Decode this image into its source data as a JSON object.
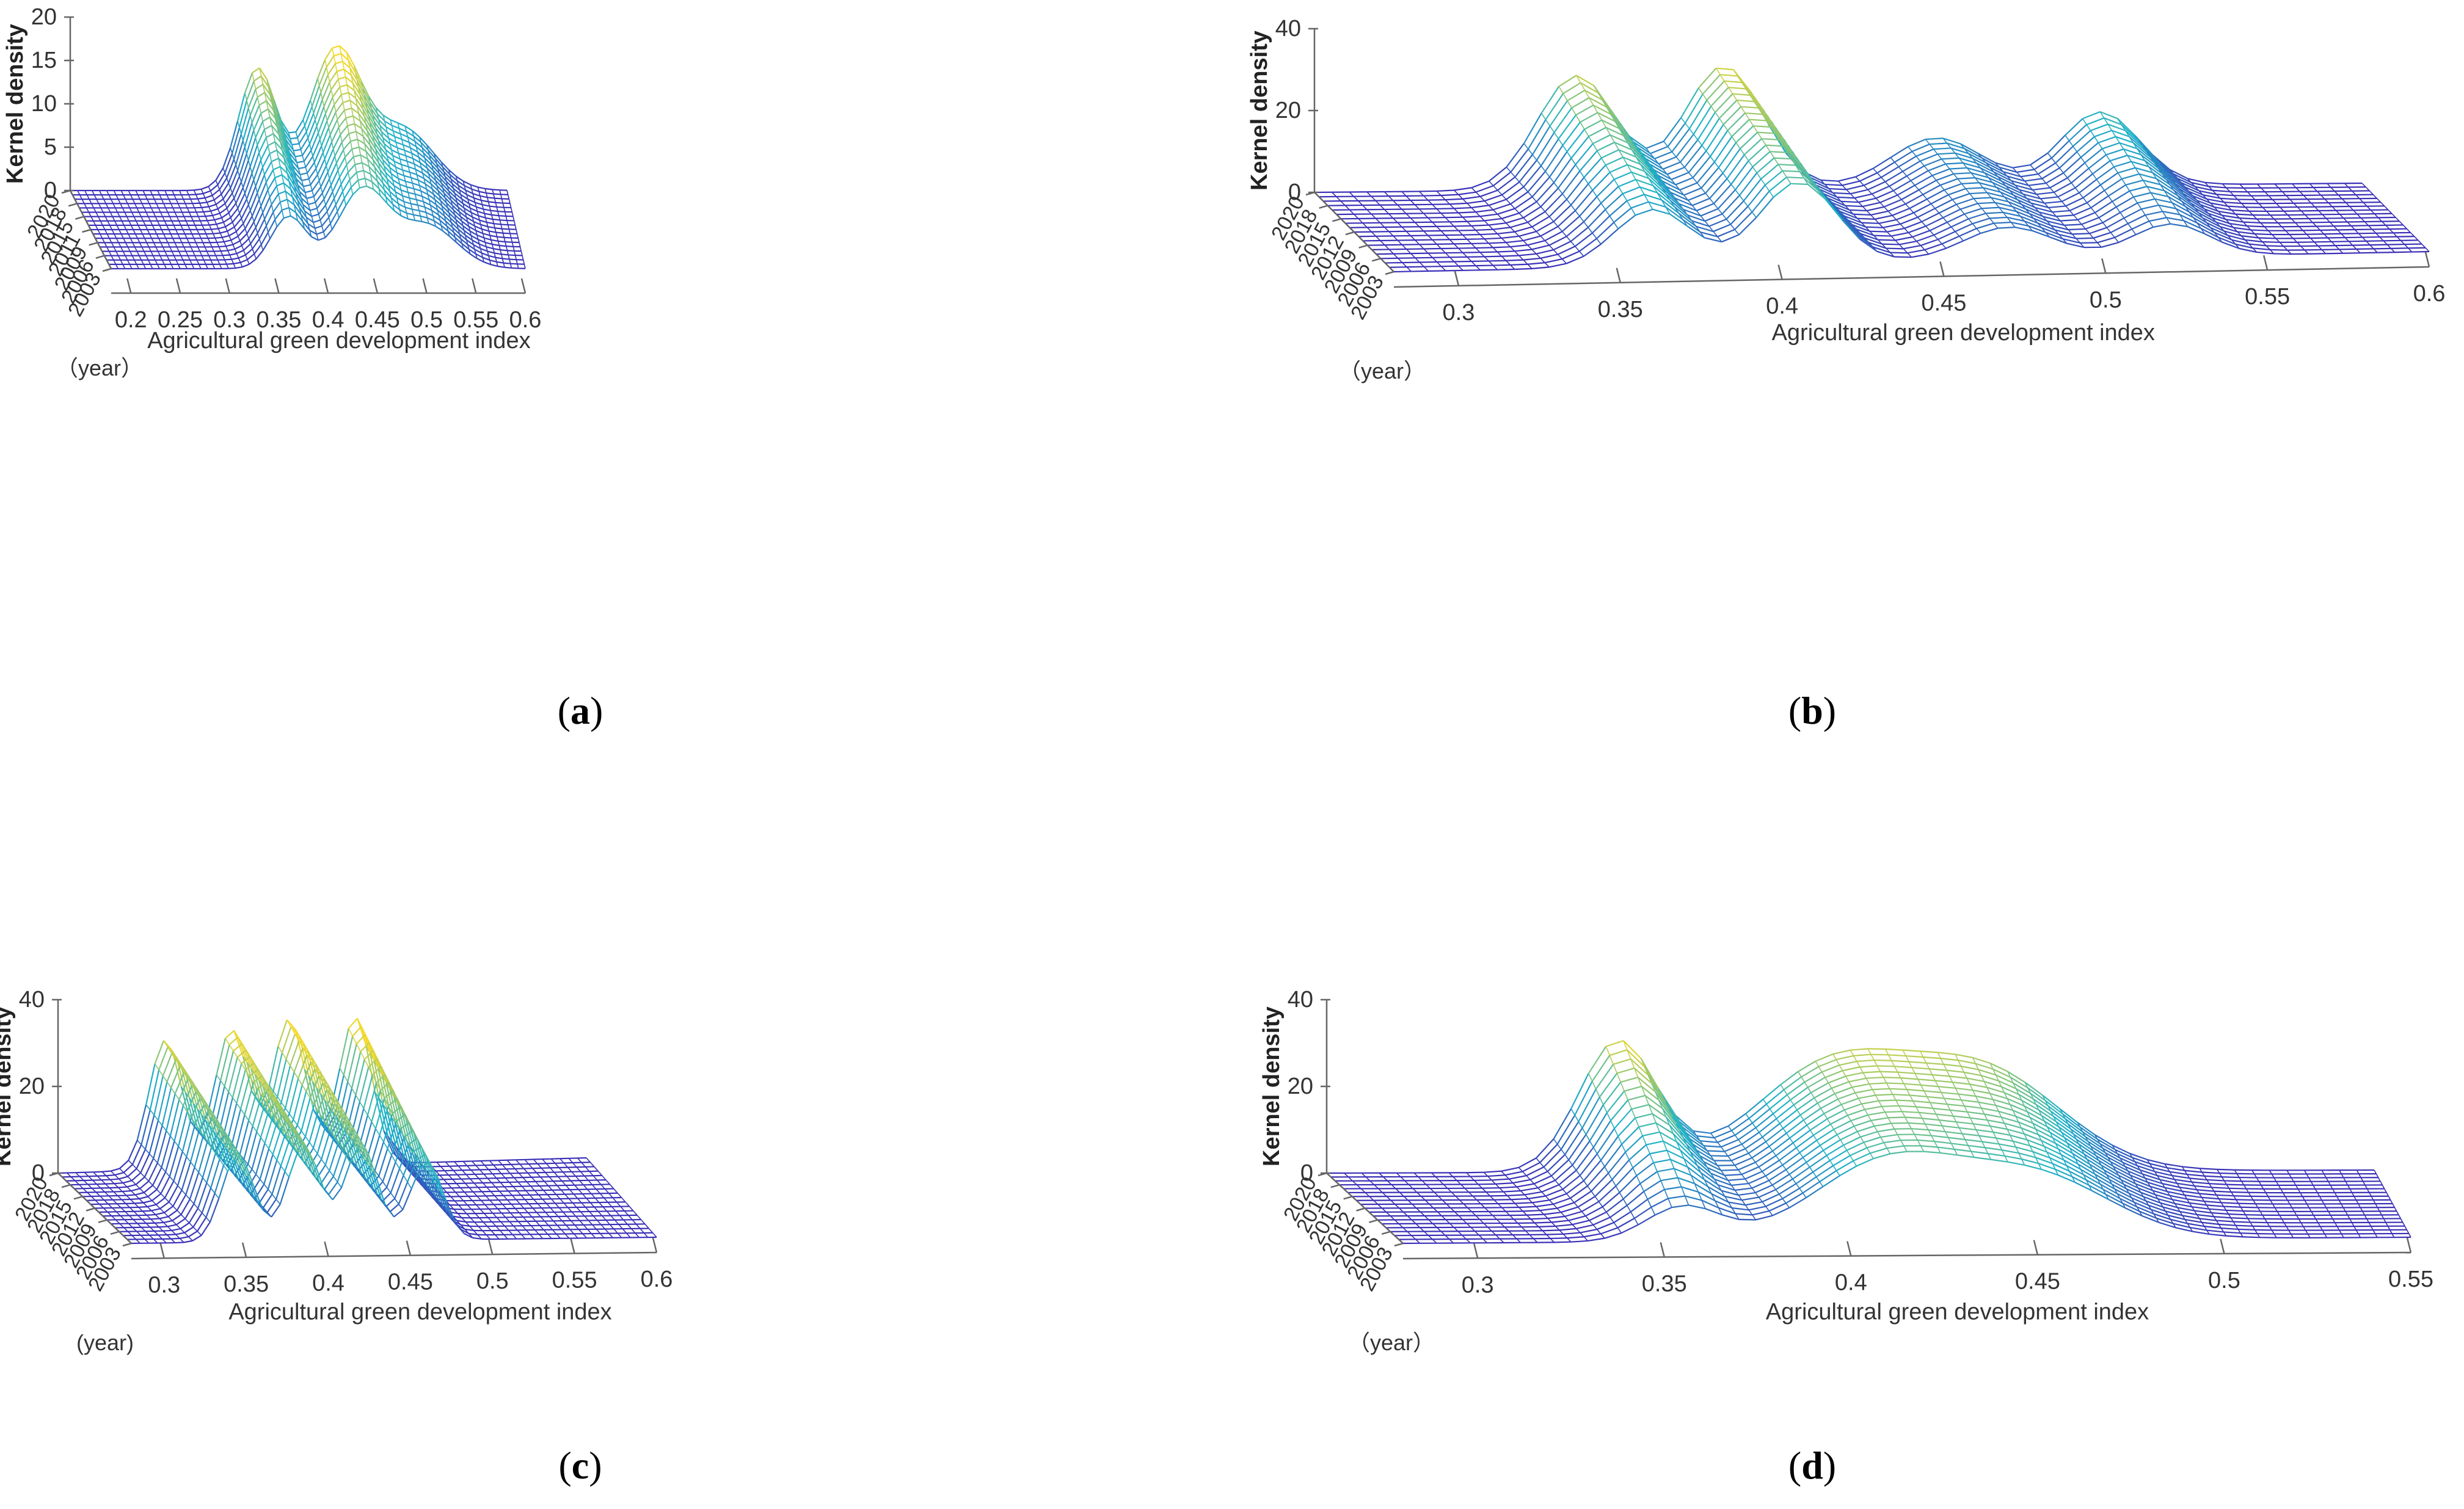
{
  "chart_data": [
    {
      "type": "surface-3d",
      "panel": "a",
      "caption_letter": "a",
      "xlabel": "Agricultural green development index",
      "ylabel": "Kernel density",
      "year_label": "（year）",
      "x_ticks": [
        "0.2",
        "0.25",
        "0.3",
        "0.35",
        "0.4",
        "0.45",
        "0.5",
        "0.55",
        "0.6"
      ],
      "xlim": [
        0.18,
        0.6
      ],
      "z_ticks": [
        "0",
        "5",
        "10",
        "15",
        "20"
      ],
      "zlim": [
        0,
        20
      ],
      "year_ticks": [
        "2003",
        "2006",
        "2009",
        "2011",
        "2015",
        "2018",
        "2020"
      ],
      "years": [
        2003,
        2020
      ],
      "peaks": [
        {
          "x": 0.36,
          "height_start": 6,
          "height_end": 14,
          "width": 0.018
        },
        {
          "x": 0.435,
          "height_start": 9,
          "height_end": 16,
          "width": 0.025
        },
        {
          "x": 0.5,
          "height_start": 5,
          "height_end": 7,
          "width": 0.03
        }
      ]
    },
    {
      "type": "surface-3d",
      "panel": "b",
      "caption_letter": "b",
      "xlabel": "Agricultural green development index",
      "ylabel": "Kernel density",
      "year_label": "（year）",
      "x_ticks": [
        "0.3",
        "0.35",
        "0.4",
        "0.45",
        "0.5",
        "0.55",
        "0.6"
      ],
      "xlim": [
        0.28,
        0.6
      ],
      "z_ticks": [
        "0",
        "20",
        "40"
      ],
      "zlim": [
        0,
        40
      ],
      "year_ticks": [
        "2003",
        "2006",
        "2009",
        "2012",
        "2015",
        "2018",
        "2020"
      ],
      "years": [
        2003,
        2020
      ],
      "peaks": [
        {
          "x": 0.36,
          "height_start": 14,
          "height_end": 28,
          "width": 0.012
        },
        {
          "x": 0.405,
          "height_start": 20,
          "height_end": 30,
          "width": 0.012
        },
        {
          "x": 0.47,
          "height_start": 8,
          "height_end": 12,
          "width": 0.014
        },
        {
          "x": 0.52,
          "height_start": 8,
          "height_end": 18,
          "width": 0.012
        }
      ]
    },
    {
      "type": "surface-3d",
      "panel": "c",
      "caption_letter": "c",
      "xlabel": "Agricultural green development index",
      "ylabel": "Kernel density",
      "year_label": "(year)",
      "x_ticks": [
        "0.3",
        "0.35",
        "0.4",
        "0.45",
        "0.5",
        "0.55",
        "0.6"
      ],
      "xlim": [
        0.28,
        0.6
      ],
      "z_ticks": [
        "0",
        "20",
        "40"
      ],
      "zlim": [
        0,
        40
      ],
      "year_ticks": [
        "2003",
        "2006",
        "2009",
        "2012",
        "2015",
        "2018",
        "2020"
      ],
      "years": [
        2003,
        2020
      ],
      "peaks": [
        {
          "x": 0.345,
          "height_start": 20,
          "height_end": 30,
          "width": 0.01
        },
        {
          "x": 0.385,
          "height_start": 22,
          "height_end": 32,
          "width": 0.01
        },
        {
          "x": 0.42,
          "height_start": 22,
          "height_end": 34,
          "width": 0.01
        },
        {
          "x": 0.46,
          "height_start": 18,
          "height_end": 34,
          "width": 0.01
        }
      ]
    },
    {
      "type": "surface-3d",
      "panel": "d",
      "caption_letter": "d",
      "xlabel": "Agricultural green development index",
      "ylabel": "Kernel density",
      "year_label": "（year）",
      "x_ticks": [
        "0.3",
        "0.35",
        "0.4",
        "0.45",
        "0.5",
        "0.55"
      ],
      "xlim": [
        0.28,
        0.55
      ],
      "z_ticks": [
        "0",
        "20",
        "40"
      ],
      "zlim": [
        0,
        40
      ],
      "year_ticks": [
        "2003",
        "2006",
        "2009",
        "2012",
        "2015",
        "2018",
        "2020"
      ],
      "years": [
        2003,
        2020
      ],
      "peaks": [
        {
          "x": 0.355,
          "height_start": 8,
          "height_end": 30,
          "width": 0.01
        },
        {
          "x": 0.41,
          "height_start": 18,
          "height_end": 24,
          "width": 0.02
        },
        {
          "x": 0.45,
          "height_start": 14,
          "height_end": 22,
          "width": 0.02
        }
      ]
    }
  ],
  "colors": {
    "wire_low": "#3b2fb8",
    "wire_mid": "#1fb3c8",
    "wire_high": "#f5d92a",
    "axis": "#666666"
  }
}
